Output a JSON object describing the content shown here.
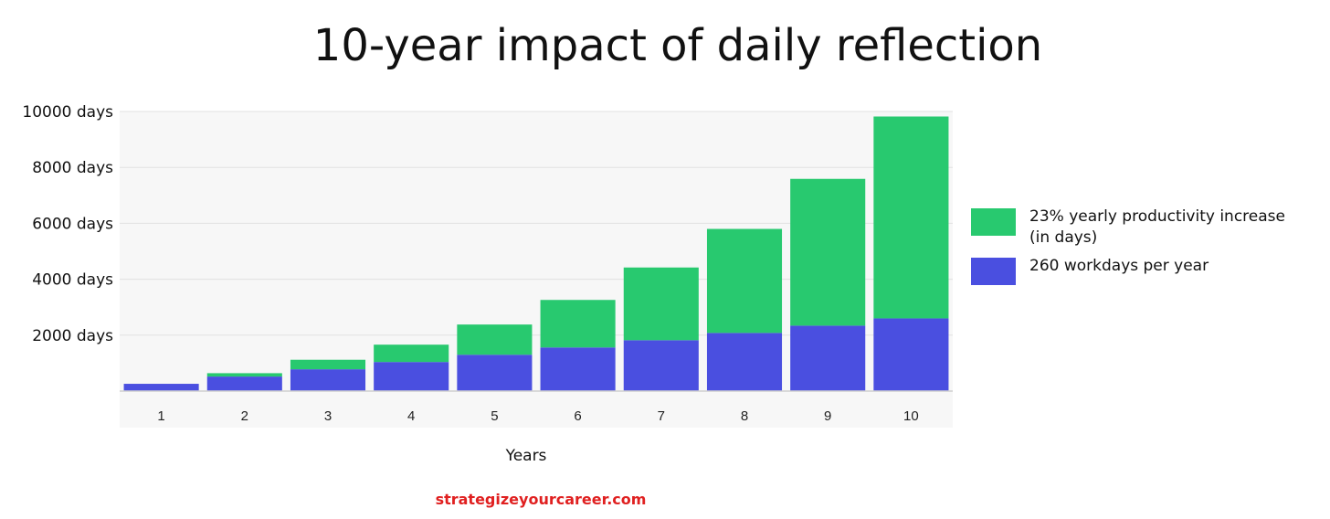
{
  "chart_data": {
    "type": "bar",
    "stacked": true,
    "title": "10-year impact of daily reflection",
    "xlabel": "Years",
    "ylabel": "",
    "categories": [
      "1",
      "2",
      "3",
      "4",
      "5",
      "6",
      "7",
      "8",
      "9",
      "10"
    ],
    "series": [
      {
        "name": "260 workdays per year",
        "color": "#4a4fe0",
        "values": [
          260,
          520,
          780,
          1040,
          1300,
          1560,
          1820,
          2080,
          2340,
          2600
        ]
      },
      {
        "name": "23% yearly productivity increase (in days)",
        "legend_lines": [
          "23% yearly productivity increase",
          "(in days)"
        ],
        "color": "#28c96f",
        "values": [
          0,
          120,
          340,
          620,
          1080,
          1700,
          2600,
          3720,
          5250,
          7220
        ]
      }
    ],
    "ylim": [
      0,
      10000
    ],
    "yticks": [
      2000,
      4000,
      6000,
      8000,
      10000
    ],
    "ytick_labels": [
      "2000 days",
      "4000 days",
      "6000 days",
      "8000 days",
      "10000 days"
    ],
    "grid": true,
    "legend_position": "right"
  },
  "footer": "strategizeyourcareer.com",
  "colors": {
    "plot_background": "#f7f7f7",
    "grid": "#e2e2e2",
    "footer": "#e02020"
  }
}
